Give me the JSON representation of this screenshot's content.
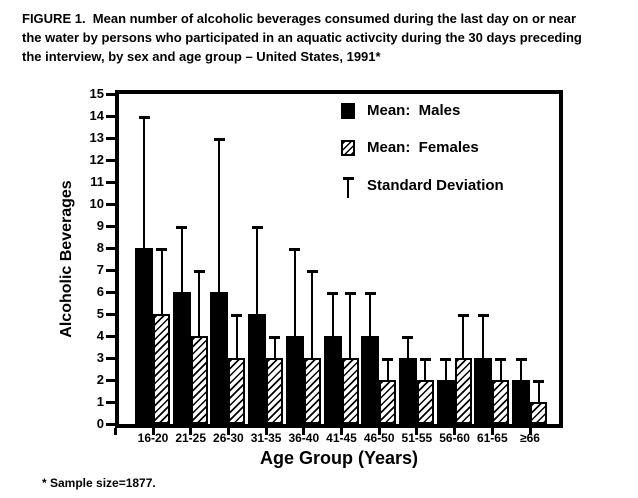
{
  "figure": {
    "title_lines": [
      "FIGURE 1.  Mean number of alcoholic beverages consumed during the last day on or near",
      "the water by persons who participated in an aquatic activcity during the 30 days preceding",
      "the interview, by sex and age group – United States, 1991*"
    ],
    "footnote": "* Sample size=1877."
  },
  "chart_data": {
    "type": "bar",
    "title": "FIGURE 1. Mean number of alcoholic beverages consumed during the last day on or near the water by persons who participated in an aquatic activcity during the 30 days preceding the interview, by sex and age group – United States, 1991*",
    "categories": [
      "16-20",
      "21-25",
      "26-30",
      "31-35",
      "36-40",
      "41-45",
      "46-50",
      "51-55",
      "56-60",
      "61-65",
      "≥66"
    ],
    "series": [
      {
        "name": "Mean:  Males",
        "pattern": "solid-black",
        "values": [
          8,
          6,
          6,
          5,
          4,
          4,
          4,
          3,
          2,
          3,
          2
        ],
        "sd_top": [
          14,
          9,
          13,
          9,
          8,
          6,
          6,
          4,
          3,
          5,
          3
        ]
      },
      {
        "name": "Mean:  Females",
        "pattern": "diagonal-hatch",
        "values": [
          5,
          4,
          3,
          3,
          3,
          3,
          2,
          2,
          3,
          2,
          1
        ],
        "sd_top": [
          8,
          7,
          5,
          4,
          7,
          6,
          3,
          3,
          5,
          3,
          2
        ]
      }
    ],
    "error_bars": "upper standard deviation, capped",
    "xlabel": "Age Group (Years)",
    "ylabel": "Alcoholic Beverages",
    "ylim": [
      0,
      15
    ],
    "ytick_step": 1,
    "grid": false,
    "legend_position": "top-right-inside",
    "legend": [
      {
        "label": "Mean:  Males",
        "marker": "solid-black-square"
      },
      {
        "label": "Mean:  Females",
        "marker": "hatched-square"
      },
      {
        "label": "Standard Deviation",
        "marker": "error-bar-symbol"
      }
    ],
    "colors": {
      "foreground": "#000000",
      "background": "#ffffff"
    }
  }
}
